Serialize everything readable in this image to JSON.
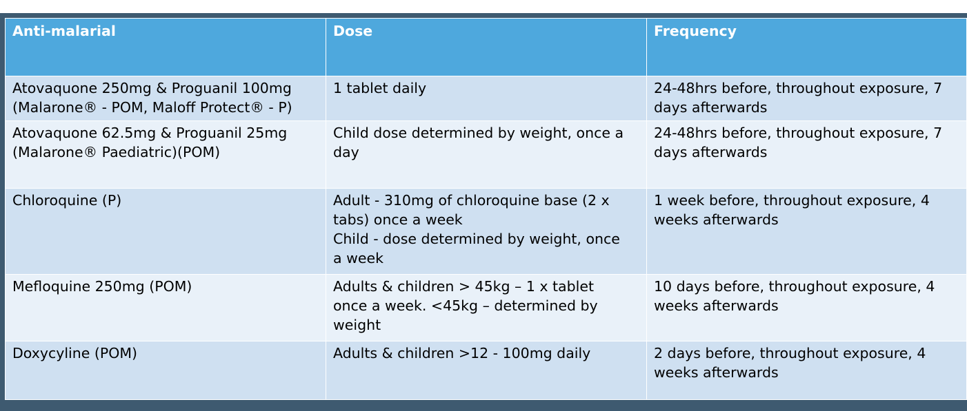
{
  "table": {
    "headers": [
      "Anti-malarial",
      "Dose",
      "Frequency"
    ],
    "rows": [
      {
        "drug": [
          "Atovaquone 250mg & Proguanil 100mg",
          "(Malarone® - POM, Maloff Protect® - P)"
        ],
        "dose": [
          "1 tablet daily"
        ],
        "frequency": [
          "24-48hrs before, throughout exposure, 7",
          "days  afterwards"
        ]
      },
      {
        "drug": [
          "Atovaquone 62.5mg & Proguanil 25mg",
          "(Malarone® Paediatric)(POM)"
        ],
        "dose": [
          "Child dose determined by weight, once a",
          "day"
        ],
        "frequency": [
          "24-48hrs before, throughout exposure, 7",
          "days  afterwards"
        ]
      },
      {
        "drug": [
          "Chloroquine (P)"
        ],
        "dose": [
          "Adult - 310mg of chloroquine base (2 x",
          "tabs) once a week",
          "Child - dose determined by weight, once",
          "a week"
        ],
        "frequency": [
          "1 week before, throughout exposure, 4",
          "weeks afterwards"
        ]
      },
      {
        "drug": [
          "Mefloquine 250mg (POM)"
        ],
        "dose": [
          "Adults & children > 45kg – 1 x tablet",
          "once a week. <45kg – determined by",
          "weight"
        ],
        "frequency": [
          "10 days before, throughout exposure, 4",
          "weeks afterwards"
        ]
      },
      {
        "drug": [
          "Doxycyline (POM)"
        ],
        "dose": [
          "Adults & children >12 - 100mg daily"
        ],
        "frequency": [
          "2 days before, throughout exposure, 4",
          "weeks afterwards"
        ]
      }
    ]
  },
  "colors": {
    "header_bg": "#4ea8dd",
    "row_dark_bg": "#cfe0f1",
    "row_light_bg": "#e9f1f9",
    "frame_bg": "#3e5a70"
  }
}
